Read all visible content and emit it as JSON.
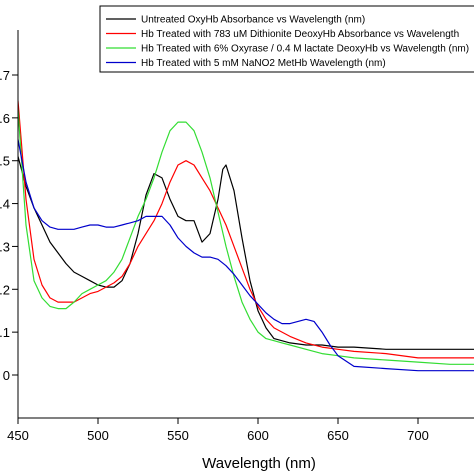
{
  "chart_data": {
    "type": "line",
    "title": "",
    "xlabel": "Wavelength (nm)",
    "ylabel": "",
    "xlim": [
      450,
      735
    ],
    "ylim": [
      -0.1,
      0.75
    ],
    "x_ticks": [
      450,
      500,
      550,
      600,
      650,
      700
    ],
    "y_ticks": [
      0.0,
      0.1,
      0.2,
      0.3,
      0.4,
      0.5,
      0.6,
      0.7
    ],
    "y_tick_labels": [
      "0",
      ".1",
      ".2",
      ".3",
      ".4",
      ".5",
      ".6",
      ".7"
    ],
    "grid": false,
    "legend_position": "top-right",
    "series": [
      {
        "name": "Untreated OxyHb Absorbance vs Wavelength (nm)",
        "color": "#000000",
        "x": [
          450,
          455,
          460,
          465,
          470,
          475,
          480,
          485,
          490,
          495,
          500,
          505,
          510,
          515,
          520,
          525,
          530,
          535,
          540,
          545,
          550,
          555,
          560,
          565,
          570,
          575,
          578,
          580,
          585,
          590,
          595,
          600,
          605,
          610,
          620,
          630,
          640,
          650,
          660,
          680,
          700,
          720,
          735
        ],
        "y": [
          0.51,
          0.44,
          0.39,
          0.35,
          0.31,
          0.285,
          0.26,
          0.24,
          0.23,
          0.22,
          0.21,
          0.205,
          0.205,
          0.22,
          0.26,
          0.33,
          0.42,
          0.47,
          0.46,
          0.41,
          0.37,
          0.36,
          0.36,
          0.31,
          0.33,
          0.41,
          0.48,
          0.49,
          0.43,
          0.32,
          0.22,
          0.15,
          0.11,
          0.085,
          0.075,
          0.07,
          0.07,
          0.065,
          0.065,
          0.06,
          0.06,
          0.06,
          0.06
        ]
      },
      {
        "name": "Hb Treated with 783 uM Dithionite DeoxyHb Absorbance vs Wavelength",
        "color": "#ff0000",
        "x": [
          450,
          455,
          460,
          465,
          470,
          475,
          480,
          485,
          490,
          495,
          500,
          505,
          510,
          515,
          520,
          525,
          530,
          535,
          540,
          545,
          550,
          555,
          560,
          565,
          570,
          575,
          580,
          585,
          590,
          595,
          600,
          605,
          610,
          615,
          620,
          630,
          640,
          650,
          660,
          680,
          700,
          720,
          735
        ],
        "y": [
          0.64,
          0.41,
          0.27,
          0.21,
          0.18,
          0.17,
          0.17,
          0.17,
          0.18,
          0.19,
          0.195,
          0.205,
          0.215,
          0.23,
          0.26,
          0.3,
          0.33,
          0.36,
          0.4,
          0.45,
          0.49,
          0.5,
          0.49,
          0.46,
          0.43,
          0.39,
          0.35,
          0.3,
          0.25,
          0.2,
          0.16,
          0.13,
          0.11,
          0.1,
          0.09,
          0.075,
          0.065,
          0.06,
          0.055,
          0.05,
          0.04,
          0.04,
          0.04
        ]
      },
      {
        "name": "Hb Treated with 6% Oxyrase / 0.4 M lactate DeoxyHb vs Wavelength (nm)",
        "color": "#33dd33",
        "x": [
          450,
          455,
          460,
          465,
          470,
          475,
          480,
          485,
          490,
          495,
          500,
          505,
          510,
          515,
          520,
          525,
          530,
          535,
          540,
          545,
          550,
          555,
          560,
          565,
          570,
          575,
          580,
          585,
          590,
          595,
          600,
          605,
          610,
          615,
          620,
          630,
          640,
          650,
          660,
          680,
          700,
          720,
          735
        ],
        "y": [
          0.62,
          0.35,
          0.22,
          0.18,
          0.16,
          0.155,
          0.155,
          0.17,
          0.19,
          0.2,
          0.21,
          0.22,
          0.24,
          0.27,
          0.32,
          0.37,
          0.41,
          0.46,
          0.52,
          0.57,
          0.59,
          0.59,
          0.57,
          0.52,
          0.46,
          0.38,
          0.3,
          0.23,
          0.17,
          0.13,
          0.1,
          0.085,
          0.08,
          0.075,
          0.07,
          0.06,
          0.05,
          0.045,
          0.04,
          0.035,
          0.03,
          0.025,
          0.025
        ]
      },
      {
        "name": "Hb Treated with 5 mM NaNO2 MetHb Wavelength (nm)",
        "color": "#0000cc",
        "x": [
          450,
          455,
          460,
          465,
          470,
          475,
          480,
          485,
          490,
          495,
          500,
          505,
          510,
          515,
          520,
          525,
          530,
          535,
          540,
          545,
          550,
          555,
          560,
          565,
          570,
          575,
          580,
          585,
          590,
          595,
          600,
          605,
          610,
          615,
          620,
          625,
          630,
          635,
          640,
          645,
          650,
          660,
          680,
          700,
          720,
          735
        ],
        "y": [
          0.55,
          0.45,
          0.39,
          0.36,
          0.345,
          0.34,
          0.34,
          0.34,
          0.345,
          0.35,
          0.35,
          0.345,
          0.345,
          0.35,
          0.355,
          0.36,
          0.37,
          0.37,
          0.37,
          0.35,
          0.32,
          0.3,
          0.285,
          0.275,
          0.275,
          0.27,
          0.255,
          0.235,
          0.21,
          0.185,
          0.165,
          0.145,
          0.13,
          0.12,
          0.12,
          0.125,
          0.13,
          0.125,
          0.1,
          0.07,
          0.045,
          0.02,
          0.015,
          0.01,
          0.01,
          0.01
        ]
      }
    ]
  }
}
